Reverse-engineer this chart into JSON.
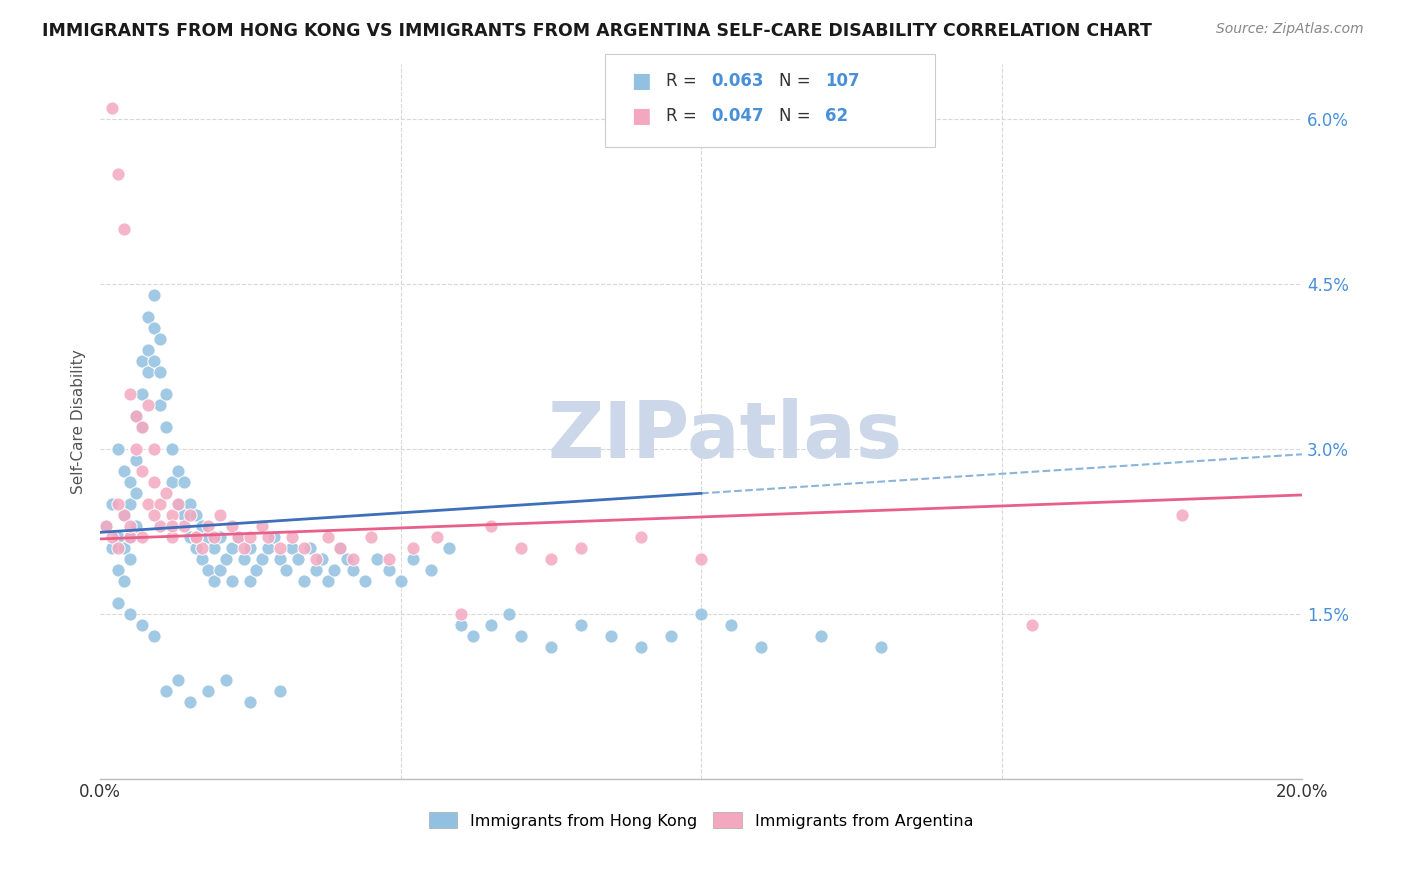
{
  "title": "IMMIGRANTS FROM HONG KONG VS IMMIGRANTS FROM ARGENTINA SELF-CARE DISABILITY CORRELATION CHART",
  "source": "Source: ZipAtlas.com",
  "ylabel": "Self-Care Disability",
  "yticks": [
    0.0,
    0.015,
    0.03,
    0.045,
    0.06
  ],
  "ytick_labels": [
    "",
    "1.5%",
    "3.0%",
    "4.5%",
    "6.0%"
  ],
  "xlim": [
    0.0,
    0.2
  ],
  "ylim": [
    0.0,
    0.065
  ],
  "hk_color": "#92c0e0",
  "arg_color": "#f4a8c0",
  "hk_line_color": "#3d6fba",
  "arg_line_color": "#e8608a",
  "dashed_color": "#8ab4d8",
  "watermark_color": "#ccd8ea",
  "background_color": "#ffffff",
  "grid_color": "#d8d8d8",
  "label_hk": "Immigrants from Hong Kong",
  "label_arg": "Immigrants from Argentina",
  "hk_N": 107,
  "arg_N": 62,
  "hk_R": 0.063,
  "arg_R": 0.047,
  "hk_trend_y0": 0.0224,
  "hk_trend_y_mid": 0.0268,
  "hk_trend_y_end": 0.0295,
  "arg_trend_y0": 0.0218,
  "arg_trend_y_end": 0.0258,
  "hk_x_points": [
    0.001,
    0.002,
    0.002,
    0.003,
    0.003,
    0.003,
    0.004,
    0.004,
    0.004,
    0.004,
    0.005,
    0.005,
    0.005,
    0.005,
    0.006,
    0.006,
    0.006,
    0.006,
    0.007,
    0.007,
    0.007,
    0.008,
    0.008,
    0.008,
    0.009,
    0.009,
    0.009,
    0.01,
    0.01,
    0.01,
    0.011,
    0.011,
    0.012,
    0.012,
    0.013,
    0.013,
    0.014,
    0.014,
    0.015,
    0.015,
    0.016,
    0.016,
    0.017,
    0.017,
    0.018,
    0.018,
    0.019,
    0.019,
    0.02,
    0.02,
    0.021,
    0.022,
    0.022,
    0.023,
    0.024,
    0.025,
    0.025,
    0.026,
    0.027,
    0.028,
    0.029,
    0.03,
    0.031,
    0.032,
    0.033,
    0.034,
    0.035,
    0.036,
    0.037,
    0.038,
    0.039,
    0.04,
    0.041,
    0.042,
    0.044,
    0.046,
    0.048,
    0.05,
    0.052,
    0.055,
    0.058,
    0.06,
    0.062,
    0.065,
    0.068,
    0.07,
    0.075,
    0.08,
    0.085,
    0.09,
    0.095,
    0.1,
    0.105,
    0.11,
    0.12,
    0.13,
    0.003,
    0.005,
    0.007,
    0.009,
    0.011,
    0.013,
    0.015,
    0.018,
    0.021,
    0.025,
    0.03
  ],
  "hk_y_points": [
    0.023,
    0.021,
    0.025,
    0.03,
    0.022,
    0.019,
    0.028,
    0.024,
    0.021,
    0.018,
    0.027,
    0.025,
    0.022,
    0.02,
    0.033,
    0.029,
    0.026,
    0.023,
    0.038,
    0.035,
    0.032,
    0.042,
    0.039,
    0.037,
    0.044,
    0.041,
    0.038,
    0.04,
    0.037,
    0.034,
    0.035,
    0.032,
    0.03,
    0.027,
    0.028,
    0.025,
    0.027,
    0.024,
    0.025,
    0.022,
    0.024,
    0.021,
    0.023,
    0.02,
    0.022,
    0.019,
    0.021,
    0.018,
    0.022,
    0.019,
    0.02,
    0.021,
    0.018,
    0.022,
    0.02,
    0.021,
    0.018,
    0.019,
    0.02,
    0.021,
    0.022,
    0.02,
    0.019,
    0.021,
    0.02,
    0.018,
    0.021,
    0.019,
    0.02,
    0.018,
    0.019,
    0.021,
    0.02,
    0.019,
    0.018,
    0.02,
    0.019,
    0.018,
    0.02,
    0.019,
    0.021,
    0.014,
    0.013,
    0.014,
    0.015,
    0.013,
    0.012,
    0.014,
    0.013,
    0.012,
    0.013,
    0.015,
    0.014,
    0.012,
    0.013,
    0.012,
    0.016,
    0.015,
    0.014,
    0.013,
    0.008,
    0.009,
    0.007,
    0.008,
    0.009,
    0.007,
    0.008
  ],
  "arg_x_points": [
    0.001,
    0.002,
    0.002,
    0.003,
    0.003,
    0.004,
    0.004,
    0.005,
    0.005,
    0.006,
    0.006,
    0.007,
    0.007,
    0.008,
    0.008,
    0.009,
    0.009,
    0.01,
    0.01,
    0.011,
    0.012,
    0.012,
    0.013,
    0.014,
    0.015,
    0.016,
    0.017,
    0.018,
    0.019,
    0.02,
    0.022,
    0.023,
    0.024,
    0.025,
    0.027,
    0.028,
    0.03,
    0.032,
    0.034,
    0.036,
    0.038,
    0.04,
    0.042,
    0.045,
    0.048,
    0.052,
    0.056,
    0.06,
    0.065,
    0.07,
    0.075,
    0.08,
    0.09,
    0.1,
    0.003,
    0.005,
    0.007,
    0.009,
    0.012,
    0.016,
    0.18,
    0.155
  ],
  "arg_y_points": [
    0.023,
    0.061,
    0.022,
    0.055,
    0.021,
    0.05,
    0.024,
    0.035,
    0.022,
    0.033,
    0.03,
    0.032,
    0.028,
    0.034,
    0.025,
    0.03,
    0.027,
    0.025,
    0.023,
    0.026,
    0.024,
    0.022,
    0.025,
    0.023,
    0.024,
    0.022,
    0.021,
    0.023,
    0.022,
    0.024,
    0.023,
    0.022,
    0.021,
    0.022,
    0.023,
    0.022,
    0.021,
    0.022,
    0.021,
    0.02,
    0.022,
    0.021,
    0.02,
    0.022,
    0.02,
    0.021,
    0.022,
    0.015,
    0.023,
    0.021,
    0.02,
    0.021,
    0.022,
    0.02,
    0.025,
    0.023,
    0.022,
    0.024,
    0.023,
    0.022,
    0.024,
    0.014
  ]
}
